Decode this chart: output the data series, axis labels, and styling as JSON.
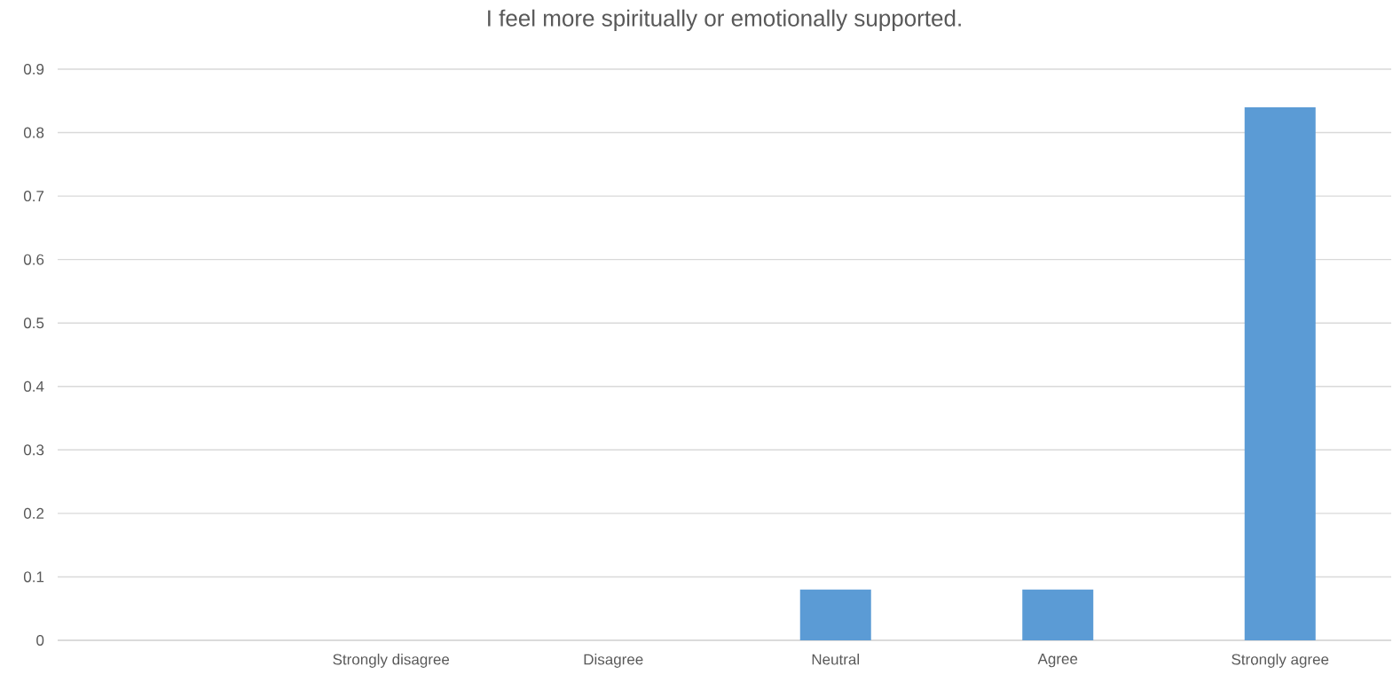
{
  "chart_data": {
    "type": "bar",
    "title": "I feel more spiritually or emotionally supported.",
    "categories": [
      null,
      "Strongly disagree",
      "Disagree",
      "Neutral",
      "Agree",
      "Strongly agree"
    ],
    "values": [
      0,
      0,
      0,
      0.08,
      0.08,
      0.84
    ],
    "color": "#5b9bd5",
    "ylim": [
      0,
      0.9
    ],
    "yticks": [
      0,
      0.1,
      0.2,
      0.3,
      0.4,
      0.5,
      0.6,
      0.7,
      0.8,
      0.9
    ],
    "grid": "y"
  }
}
